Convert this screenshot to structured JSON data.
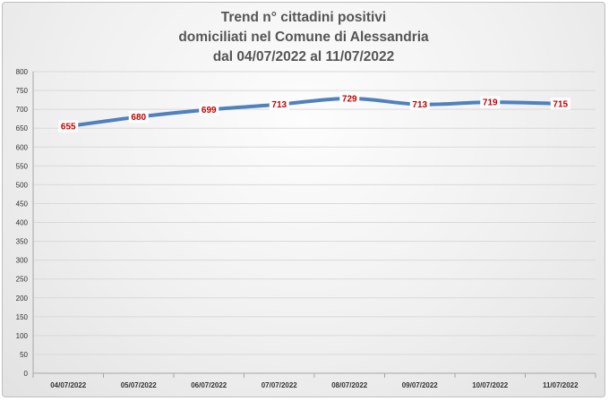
{
  "chart_data": {
    "type": "line",
    "title_lines": [
      "Trend n° cittadini positivi",
      "domiciliati nel Comune di Alessandria",
      "dal 04/07/2022 al 11/07/2022"
    ],
    "categories": [
      "04/07/2022",
      "05/07/2022",
      "06/07/2022",
      "07/07/2022",
      "08/07/2022",
      "09/07/2022",
      "10/07/2022",
      "11/07/2022"
    ],
    "values": [
      655,
      680,
      699,
      713,
      729,
      713,
      719,
      715
    ],
    "data_labels": [
      "655",
      "680",
      "699",
      "713",
      "729",
      "713",
      "719",
      "715"
    ],
    "ylim": [
      0,
      800
    ],
    "yticks": [
      0,
      50,
      100,
      150,
      200,
      250,
      300,
      350,
      400,
      450,
      500,
      550,
      600,
      650,
      700,
      750,
      800
    ],
    "grid": true,
    "legend": "none",
    "colors": {
      "line": "#4f81bd",
      "label_text": "#c00000",
      "label_bg": "#ffffff",
      "grid": "#d9d9d9"
    }
  }
}
